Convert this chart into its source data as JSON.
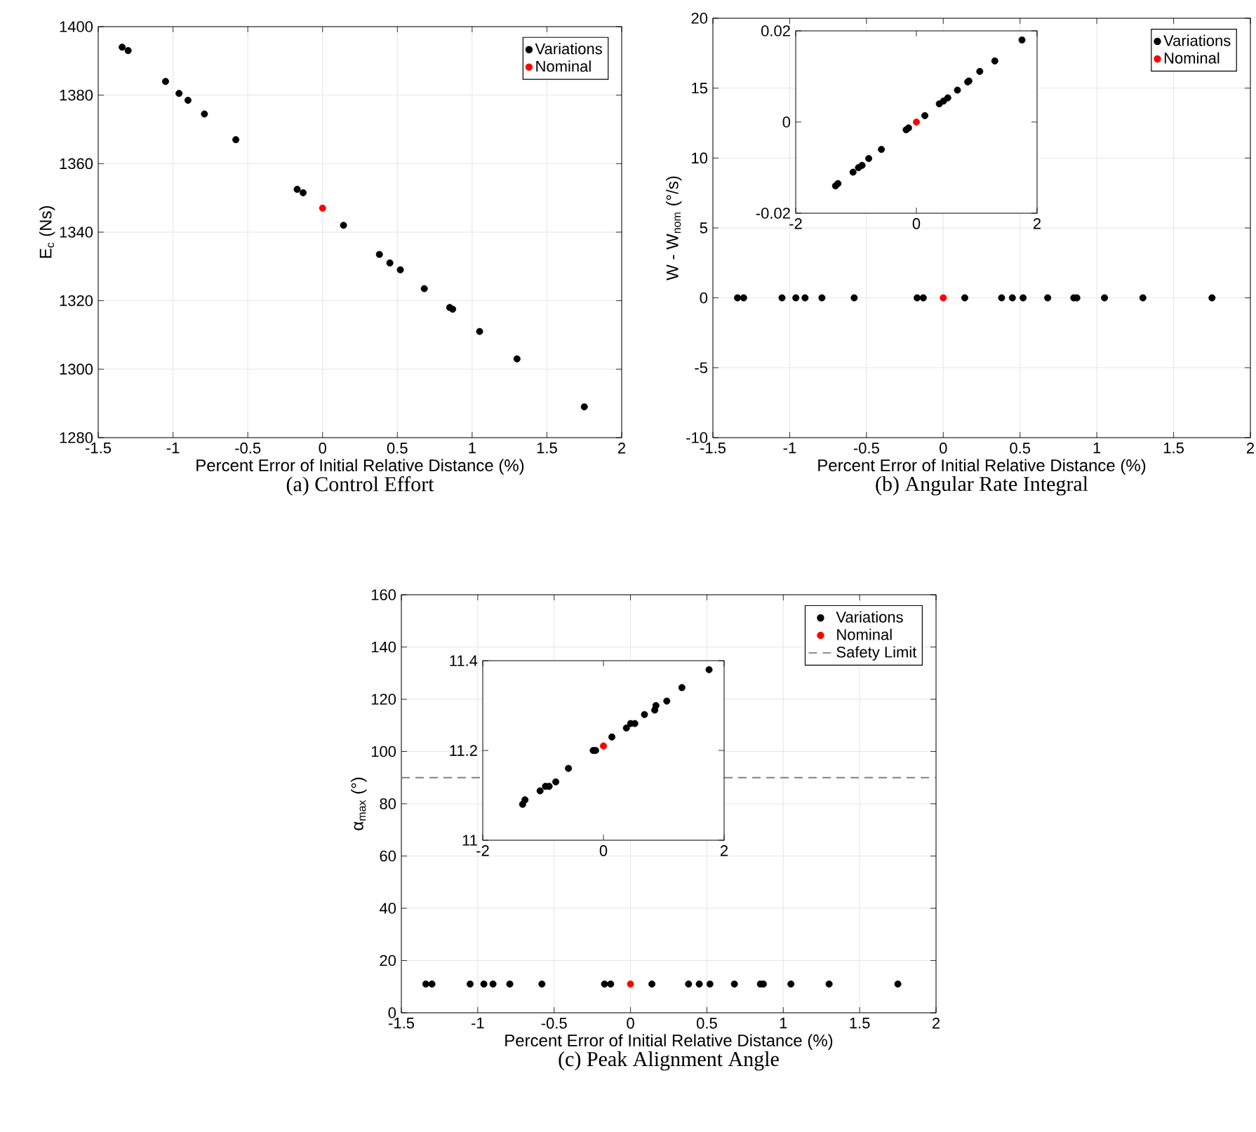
{
  "chart_data": [
    {
      "type": "scatter",
      "title": "(a) Control Effort",
      "xlabel": "Percent Error of Initial Relative Distance (%)",
      "ylabel": "E$_{c}$ (Ns)",
      "xlim": [
        -1.5,
        2
      ],
      "ylim": [
        1280,
        1400
      ],
      "xticks": [
        -1.5,
        -1,
        -0.5,
        0,
        0.5,
        1,
        1.5,
        2
      ],
      "yticks": [
        1280,
        1300,
        1320,
        1340,
        1360,
        1380,
        1400
      ],
      "grid": true,
      "legend": "top right",
      "marker": "circle",
      "series": [
        {
          "name": "Variations",
          "color": "#000000",
          "x": [
            -1.34,
            -1.3,
            -1.05,
            -0.96,
            -0.9,
            -0.79,
            -0.58,
            -0.17,
            -0.13,
            0.14,
            0.38,
            0.45,
            0.52,
            0.68,
            0.85,
            0.87,
            1.05,
            1.3,
            1.75
          ],
          "values": [
            1394,
            1393,
            1384,
            1380.5,
            1378.5,
            1374.5,
            1367,
            1352.5,
            1351.5,
            1342,
            1333.5,
            1331,
            1329,
            1323.5,
            1318,
            1317.5,
            1311,
            1303,
            1289
          ]
        },
        {
          "name": "Nominal",
          "color": "#ff0000",
          "x": [
            0
          ],
          "values": [
            1347
          ]
        }
      ]
    },
    {
      "type": "scatter",
      "title": "(b) Angular Rate Integral",
      "xlabel": "Percent Error of Initial Relative Distance (%)",
      "ylabel": "W - W$_{nom}$ (°/s)",
      "xlim": [
        -1.5,
        2
      ],
      "ylim": [
        -10,
        20
      ],
      "xticks": [
        -1.5,
        -1,
        -0.5,
        0,
        0.5,
        1,
        1.5,
        2
      ],
      "yticks": [
        -10,
        -5,
        0,
        5,
        10,
        15,
        20
      ],
      "grid": true,
      "legend": "top right",
      "marker": "circle",
      "series": [
        {
          "name": "Variations",
          "color": "#000000",
          "x": [
            -1.34,
            -1.3,
            -1.05,
            -0.96,
            -0.9,
            -0.79,
            -0.58,
            -0.17,
            -0.13,
            0.14,
            0.38,
            0.45,
            0.52,
            0.68,
            0.85,
            0.87,
            1.05,
            1.3,
            1.75
          ],
          "values": [
            0,
            0,
            0,
            0,
            0,
            0,
            0,
            0,
            0,
            0,
            0,
            0,
            0,
            0,
            0,
            0,
            0,
            0,
            0
          ]
        },
        {
          "name": "Nominal",
          "color": "#ff0000",
          "x": [
            0
          ],
          "values": [
            0
          ]
        }
      ]
    },
    {
      "type": "scatter",
      "xlim": [
        -2,
        2
      ],
      "ylim": [
        -0.02,
        0.02
      ],
      "xticks": [
        -2,
        0,
        2
      ],
      "yticks": [
        -0.02,
        0,
        0.02
      ],
      "marker": "circle",
      "series": [
        {
          "color": "#000000",
          "x": [
            -1.34,
            -1.3,
            -1.05,
            -0.96,
            -0.9,
            -0.79,
            -0.58,
            -0.17,
            -0.13,
            0.14,
            0.38,
            0.45,
            0.52,
            0.68,
            0.85,
            0.87,
            1.05,
            1.3,
            1.75
          ],
          "values": [
            -0.014,
            -0.0135,
            -0.011,
            -0.01,
            -0.0095,
            -0.008,
            -0.006,
            -0.0017,
            -0.0013,
            0.0014,
            0.004,
            0.0046,
            0.0053,
            0.007,
            0.0088,
            0.009,
            0.0111,
            0.0134,
            0.018
          ]
        },
        {
          "color": "#ff0000",
          "x": [
            0
          ],
          "values": [
            0
          ]
        }
      ]
    },
    {
      "type": "scatter",
      "title": "(c) Peak Alignment Angle",
      "xlabel": "Percent Error of Initial Relative Distance (%)",
      "ylabel": "α$_{max}$ (°)",
      "xlim": [
        -1.5,
        2
      ],
      "ylim": [
        0,
        160
      ],
      "xticks": [
        -1.5,
        -1,
        -0.5,
        0,
        0.5,
        1,
        1.5,
        2
      ],
      "yticks": [
        0,
        20,
        40,
        60,
        80,
        100,
        120,
        140,
        160
      ],
      "grid": true,
      "legend": "top right",
      "marker": "circle",
      "ref_lines": [
        {
          "axis": "y",
          "value": 90,
          "label": "Safety Limit",
          "color": "#808080",
          "line_style": "dashed"
        }
      ],
      "series": [
        {
          "name": "Variations",
          "color": "#000000",
          "x": [
            -1.34,
            -1.3,
            -1.05,
            -0.96,
            -0.9,
            -0.79,
            -0.58,
            -0.17,
            -0.13,
            0.14,
            0.38,
            0.45,
            0.52,
            0.68,
            0.85,
            0.87,
            1.05,
            1.3,
            1.75
          ],
          "values": [
            11,
            11,
            11,
            11,
            11,
            11,
            11,
            11,
            11,
            11,
            11,
            11,
            11,
            11,
            11,
            11,
            11,
            11,
            11
          ]
        },
        {
          "name": "Nominal",
          "color": "#ff0000",
          "x": [
            0
          ],
          "values": [
            11
          ]
        }
      ]
    },
    {
      "type": "scatter",
      "xlim": [
        -2,
        2
      ],
      "ylim": [
        11,
        11.4
      ],
      "xticks": [
        -2,
        0,
        2
      ],
      "yticks": [
        11,
        11.2,
        11.4
      ],
      "marker": "circle",
      "series": [
        {
          "color": "#000000",
          "x": [
            -1.34,
            -1.3,
            -1.05,
            -0.96,
            -0.9,
            -0.79,
            -0.58,
            -0.17,
            -0.13,
            0.14,
            0.38,
            0.45,
            0.52,
            0.68,
            0.85,
            0.87,
            1.05,
            1.3,
            1.75
          ],
          "values": [
            11.08,
            11.09,
            11.11,
            11.12,
            11.12,
            11.13,
            11.16,
            11.2,
            11.2,
            11.23,
            11.25,
            11.26,
            11.26,
            11.28,
            11.29,
            11.3,
            11.31,
            11.34,
            11.38
          ]
        },
        {
          "color": "#ff0000",
          "x": [
            0
          ],
          "values": [
            11.21
          ]
        }
      ]
    }
  ]
}
